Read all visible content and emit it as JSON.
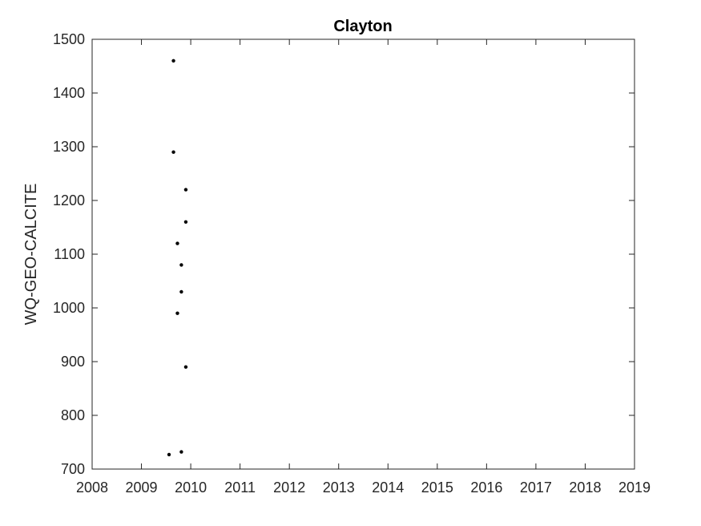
{
  "chart_data": {
    "type": "scatter",
    "title": "Clayton",
    "xlabel": "",
    "ylabel": "WQ-GEO-CALCITE",
    "xlim": [
      2008,
      2019
    ],
    "ylim": [
      700,
      1500
    ],
    "xticks": [
      2008,
      2009,
      2010,
      2011,
      2012,
      2013,
      2014,
      2015,
      2016,
      2017,
      2018,
      2019
    ],
    "yticks": [
      700,
      800,
      900,
      1000,
      1100,
      1200,
      1300,
      1400,
      1500
    ],
    "grid": false,
    "marker_color": "#000000",
    "points": [
      {
        "x": 2009.65,
        "y": 1460
      },
      {
        "x": 2009.65,
        "y": 1290
      },
      {
        "x": 2009.9,
        "y": 1220
      },
      {
        "x": 2009.9,
        "y": 1160
      },
      {
        "x": 2009.73,
        "y": 1120
      },
      {
        "x": 2009.81,
        "y": 1080
      },
      {
        "x": 2009.81,
        "y": 1030
      },
      {
        "x": 2009.73,
        "y": 990
      },
      {
        "x": 2009.9,
        "y": 890
      },
      {
        "x": 2009.81,
        "y": 732
      },
      {
        "x": 2009.56,
        "y": 727
      }
    ]
  }
}
